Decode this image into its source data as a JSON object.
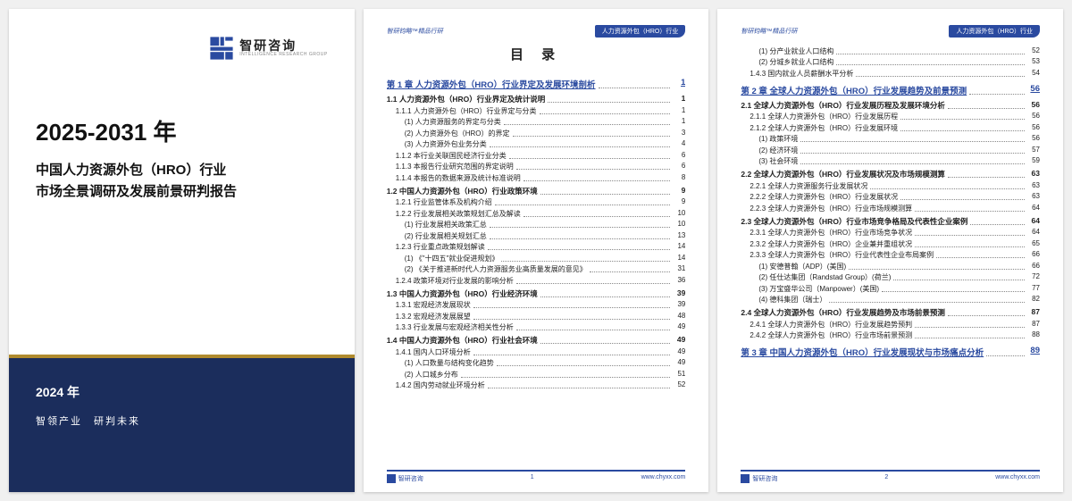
{
  "colors": {
    "accent": "#2a4aa0",
    "navy": "#1b2d5c",
    "gold": "#b08b2e"
  },
  "logo": {
    "cn": "智研咨询",
    "en": "INTELLIGENCE RESEARCH GROUP"
  },
  "cover": {
    "year_range": "2025-2031 年",
    "line1": "中国人力资源外包（HRO）行业",
    "line2": "市场全景调研及发展前景研判报告",
    "pub_year": "2024 年",
    "slogan": "智领产业　研判未来"
  },
  "hdr": {
    "left": "智研钧略™精品行研",
    "badge": "人力资源外包（HRO）行业"
  },
  "toc_title": "目 录",
  "footer": {
    "site": "www.chyxx.com"
  },
  "page2": {
    "num": "1",
    "chapter": {
      "t": "第 1 章 人力资源外包（HRO）行业界定及发展环境剖析",
      "p": "1"
    },
    "rows": [
      {
        "l": 1,
        "t": "1.1 人力资源外包（HRO）行业界定及统计说明",
        "p": "1"
      },
      {
        "l": 2,
        "t": "1.1.1 人力资源外包（HRO）行业界定与分类",
        "p": "1"
      },
      {
        "l": 3,
        "t": "(1) 人力资源服务的界定与分类",
        "p": "1"
      },
      {
        "l": 3,
        "t": "(2) 人力资源外包（HRO）的界定",
        "p": "3"
      },
      {
        "l": 3,
        "t": "(3) 人力资源外包业务分类",
        "p": "4"
      },
      {
        "l": 2,
        "t": "1.1.2 本行业关联国民经济行业分类",
        "p": "6"
      },
      {
        "l": 2,
        "t": "1.1.3 本报告行业研究范围的界定说明",
        "p": "6"
      },
      {
        "l": 2,
        "t": "1.1.4 本报告的数据来源及统计标准说明",
        "p": "8"
      },
      {
        "l": 1,
        "t": "1.2 中国人力资源外包（HRO）行业政策环境",
        "p": "9"
      },
      {
        "l": 2,
        "t": "1.2.1 行业监管体系及机构介绍",
        "p": "9"
      },
      {
        "l": 2,
        "t": "1.2.2 行业发展相关政策规划汇总及解读",
        "p": "10"
      },
      {
        "l": 3,
        "t": "(1) 行业发展相关政策汇总",
        "p": "10"
      },
      {
        "l": 3,
        "t": "(2) 行业发展相关规划汇总",
        "p": "13"
      },
      {
        "l": 2,
        "t": "1.2.3 行业重点政策规划解读",
        "p": "14"
      },
      {
        "l": 3,
        "t": "(1) 《\"十四五\"就业促进规划》",
        "p": "14"
      },
      {
        "l": 3,
        "t": "(2) 《关于推进新时代人力资源服务业高质量发展的意见》",
        "p": "31"
      },
      {
        "l": 2,
        "t": "1.2.4 政策环境对行业发展的影响分析",
        "p": "36"
      },
      {
        "l": 1,
        "t": "1.3 中国人力资源外包（HRO）行业经济环境",
        "p": "39"
      },
      {
        "l": 2,
        "t": "1.3.1 宏观经济发展现状",
        "p": "39"
      },
      {
        "l": 2,
        "t": "1.3.2 宏观经济发展展望",
        "p": "48"
      },
      {
        "l": 2,
        "t": "1.3.3 行业发展与宏观经济相关性分析",
        "p": "49"
      },
      {
        "l": 1,
        "t": "1.4 中国人力资源外包（HRO）行业社会环境",
        "p": "49"
      },
      {
        "l": 2,
        "t": "1.4.1 国内人口环境分析",
        "p": "49"
      },
      {
        "l": 3,
        "t": "(1) 人口数量与结构变化趋势",
        "p": "49"
      },
      {
        "l": 3,
        "t": "(2) 人口城乡分布",
        "p": "51"
      },
      {
        "l": 2,
        "t": "1.4.2 国内劳动就业环境分析",
        "p": "52"
      }
    ]
  },
  "page3": {
    "num": "2",
    "pre": [
      {
        "l": 3,
        "t": "(1) 分产业就业人口结构",
        "p": "52"
      },
      {
        "l": 3,
        "t": "(2) 分城乡就业人口结构",
        "p": "53"
      },
      {
        "l": 2,
        "t": "1.4.3 国内就业人员薪酬水平分析",
        "p": "54"
      }
    ],
    "chapter2": {
      "t": "第 2 章 全球人力资源外包（HRO）行业发展趋势及前景预测",
      "p": "56"
    },
    "rows2": [
      {
        "l": 1,
        "t": "2.1 全球人力资源外包（HRO）行业发展历程及发展环境分析",
        "p": "56"
      },
      {
        "l": 2,
        "t": "2.1.1 全球人力资源外包（HRO）行业发展历程",
        "p": "56"
      },
      {
        "l": 2,
        "t": "2.1.2 全球人力资源外包（HRO）行业发展环境",
        "p": "56"
      },
      {
        "l": 3,
        "t": "(1) 政策环境",
        "p": "56"
      },
      {
        "l": 3,
        "t": "(2) 经济环境",
        "p": "57"
      },
      {
        "l": 3,
        "t": "(3) 社会环境",
        "p": "59"
      },
      {
        "l": 1,
        "t": "2.2 全球人力资源外包（HRO）行业发展状况及市场规模测算",
        "p": "63"
      },
      {
        "l": 2,
        "t": "2.2.1 全球人力资源服务行业发展状况",
        "p": "63"
      },
      {
        "l": 2,
        "t": "2.2.2 全球人力资源外包（HRO）行业发展状况",
        "p": "63"
      },
      {
        "l": 2,
        "t": "2.2.3 全球人力资源外包（HRO）行业市场规模测算",
        "p": "64"
      },
      {
        "l": 1,
        "t": "2.3 全球人力资源外包（HRO）行业市场竞争格局及代表性企业案例",
        "p": "64"
      },
      {
        "l": 2,
        "t": "2.3.1 全球人力资源外包（HRO）行业市场竞争状况",
        "p": "64"
      },
      {
        "l": 2,
        "t": "2.3.2 全球人力资源外包（HRO）企业兼并重组状况",
        "p": "65"
      },
      {
        "l": 2,
        "t": "2.3.3 全球人力资源外包（HRO）行业代表性企业布局案例",
        "p": "66"
      },
      {
        "l": 3,
        "t": "(1) 安德普翰（ADP）(美国)",
        "p": "66"
      },
      {
        "l": 3,
        "t": "(2) 任仕达集团（Randstad Group）(荷兰)",
        "p": "72"
      },
      {
        "l": 3,
        "t": "(3) 万宝盛华公司（Manpower）(美国)",
        "p": "77"
      },
      {
        "l": 3,
        "t": "(4) 德科集团（瑞士）",
        "p": "82"
      },
      {
        "l": 1,
        "t": "2.4 全球人力资源外包（HRO）行业发展趋势及市场前景预测",
        "p": "87"
      },
      {
        "l": 2,
        "t": "2.4.1 全球人力资源外包（HRO）行业发展趋势预判",
        "p": "87"
      },
      {
        "l": 2,
        "t": "2.4.2 全球人力资源外包（HRO）行业市场前景预测",
        "p": "88"
      }
    ],
    "chapter3": {
      "t": "第 3 章 中国人力资源外包（HRO）行业发展现状与市场痛点分析",
      "p": "89"
    }
  }
}
